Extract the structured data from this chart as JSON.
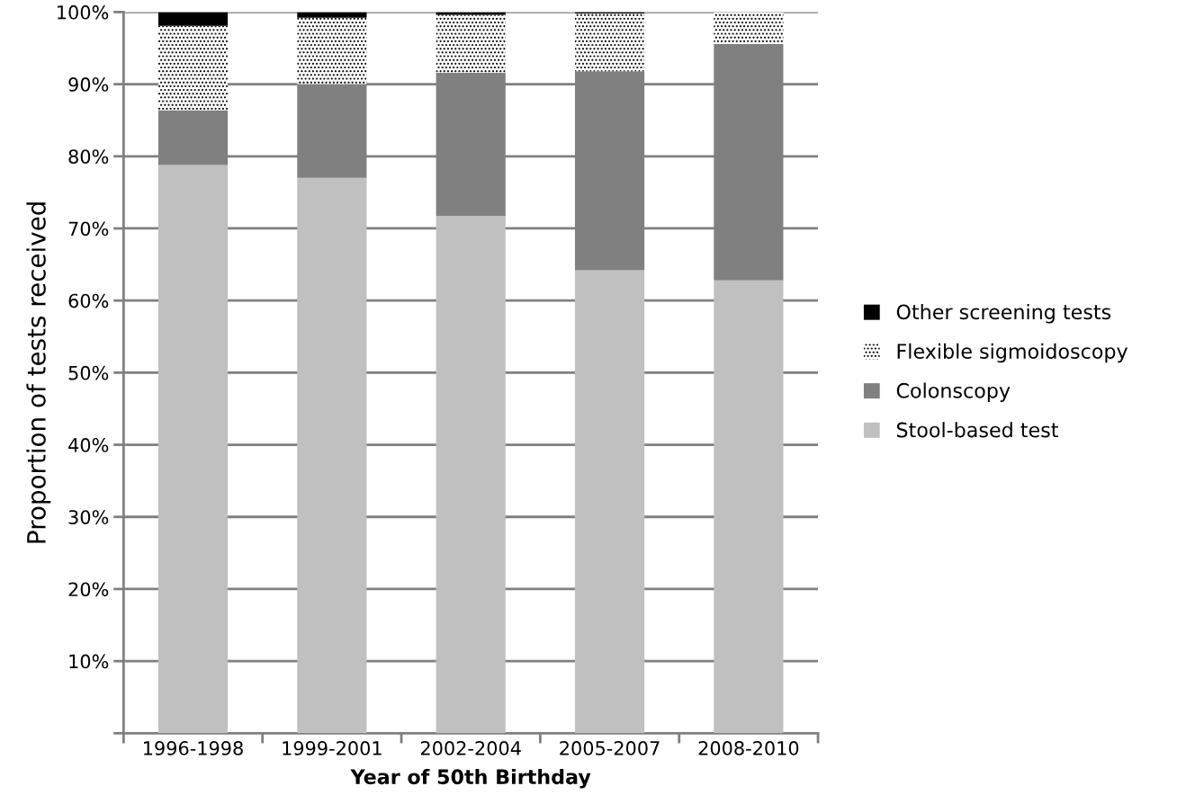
{
  "chart_data": {
    "type": "bar",
    "stacked": true,
    "xlabel": "Year of 50th Birthday",
    "ylabel": "Proportion of tests received",
    "categories": [
      "1996-1998",
      "1999-2001",
      "2002-2004",
      "2005-2007",
      "2008-2010"
    ],
    "series": [
      {
        "name": "Stool-based test",
        "color": "#c0c0c0",
        "values": [
          78.8,
          77.0,
          71.7,
          64.2,
          62.8
        ]
      },
      {
        "name": "Colonscopy",
        "color": "#808080",
        "values": [
          7.6,
          13.0,
          19.9,
          27.6,
          32.8
        ]
      },
      {
        "name": "Flexible sigmoidoscopy",
        "color": "#ffffff",
        "values": [
          11.7,
          9.2,
          8.0,
          8.0,
          4.4
        ]
      },
      {
        "name": "Other screening tests",
        "color": "#000000",
        "values": [
          1.9,
          0.8,
          0.4,
          0.2,
          0
        ]
      }
    ],
    "ylim": [
      0,
      100
    ],
    "yticks": [
      {
        "value": 0,
        "label": null
      },
      {
        "value": 10,
        "label": "10%"
      },
      {
        "value": 20,
        "label": "20%"
      },
      {
        "value": 30,
        "label": "30%"
      },
      {
        "value": 40,
        "label": "40%"
      },
      {
        "value": 50,
        "label": "50%"
      },
      {
        "value": 60,
        "label": "60%"
      },
      {
        "value": 70,
        "label": "70%"
      },
      {
        "value": 80,
        "label": "80%"
      },
      {
        "value": 90,
        "label": "90%"
      },
      {
        "value": 100,
        "label": "100%"
      }
    ],
    "grid": "y",
    "legend": "right"
  }
}
